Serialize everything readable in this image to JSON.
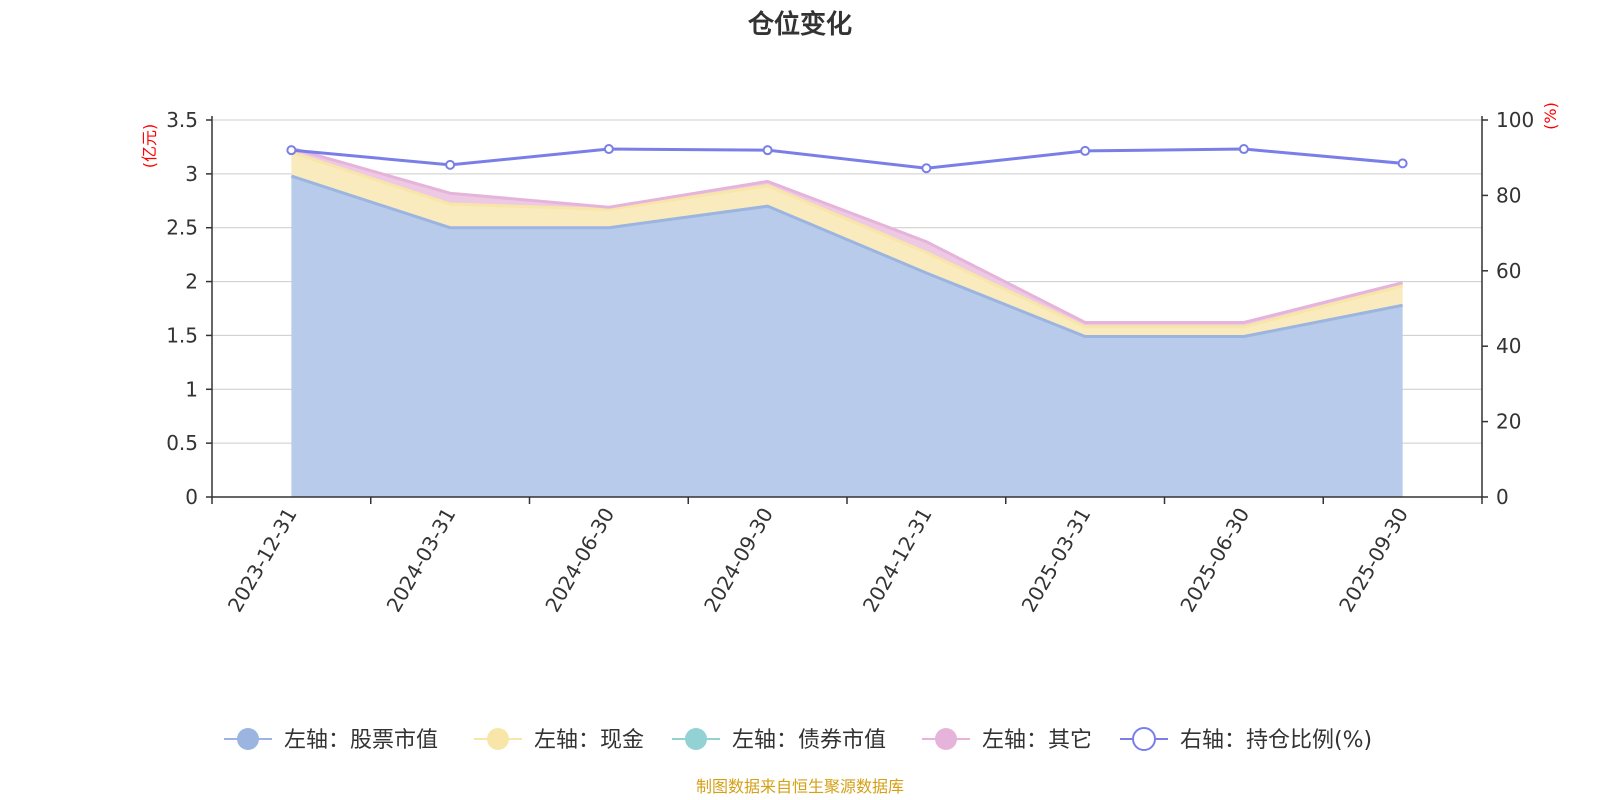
{
  "chart_data": {
    "type": "area",
    "title": "仓位变化",
    "categories": [
      "2023-12-31",
      "2024-03-31",
      "2024-06-30",
      "2024-09-30",
      "2024-12-31",
      "2025-03-31",
      "2025-06-30",
      "2025-09-30"
    ],
    "left_axis": {
      "label": "(亿元)",
      "min": 0,
      "max": 3.5,
      "ticks": [
        "0",
        "0.5",
        "1",
        "1.5",
        "2",
        "2.5",
        "3",
        "3.5"
      ]
    },
    "right_axis": {
      "label": "(%)",
      "min": 0,
      "max": 100,
      "ticks": [
        "0",
        "20",
        "40",
        "60",
        "80",
        "100"
      ]
    },
    "series": [
      {
        "name": "左轴：股票市值",
        "axis": "left",
        "stacked": true,
        "color": "#9bb5e0",
        "fill": "#b8cbea",
        "values": [
          2.98,
          2.5,
          2.5,
          2.7,
          2.08,
          1.49,
          1.49,
          1.78
        ]
      },
      {
        "name": "左轴：现金",
        "axis": "left",
        "stacked": true,
        "color": "#f8e6a8",
        "fill": "#f9ebbd",
        "values": [
          0.22,
          0.22,
          0.17,
          0.19,
          0.19,
          0.09,
          0.09,
          0.18
        ]
      },
      {
        "name": "左轴：债券市值",
        "axis": "left",
        "stacked": true,
        "color": "#92d2d4",
        "fill": "#b4e0e1",
        "values": [
          0,
          0,
          0,
          0,
          0,
          0,
          0,
          0
        ]
      },
      {
        "name": "左轴：其它",
        "axis": "left",
        "stacked": true,
        "color": "#e6b4da",
        "fill": "#edc9e4",
        "values": [
          0.04,
          0.1,
          0.02,
          0.04,
          0.1,
          0.04,
          0.04,
          0.03
        ]
      },
      {
        "name": "右轴：持仓比例(%)",
        "axis": "right",
        "stacked": false,
        "color": "#7a7fe8",
        "values": [
          92.0,
          88.1,
          92.3,
          92.0,
          87.2,
          91.8,
          92.3,
          88.5
        ]
      }
    ],
    "source": "制图数据来自恒生聚源数据库",
    "colors": {
      "title": "#333333",
      "axis_label": "#ff0000",
      "tick": "#333333",
      "grid": "#cccccc",
      "source": "#d4a017"
    }
  }
}
